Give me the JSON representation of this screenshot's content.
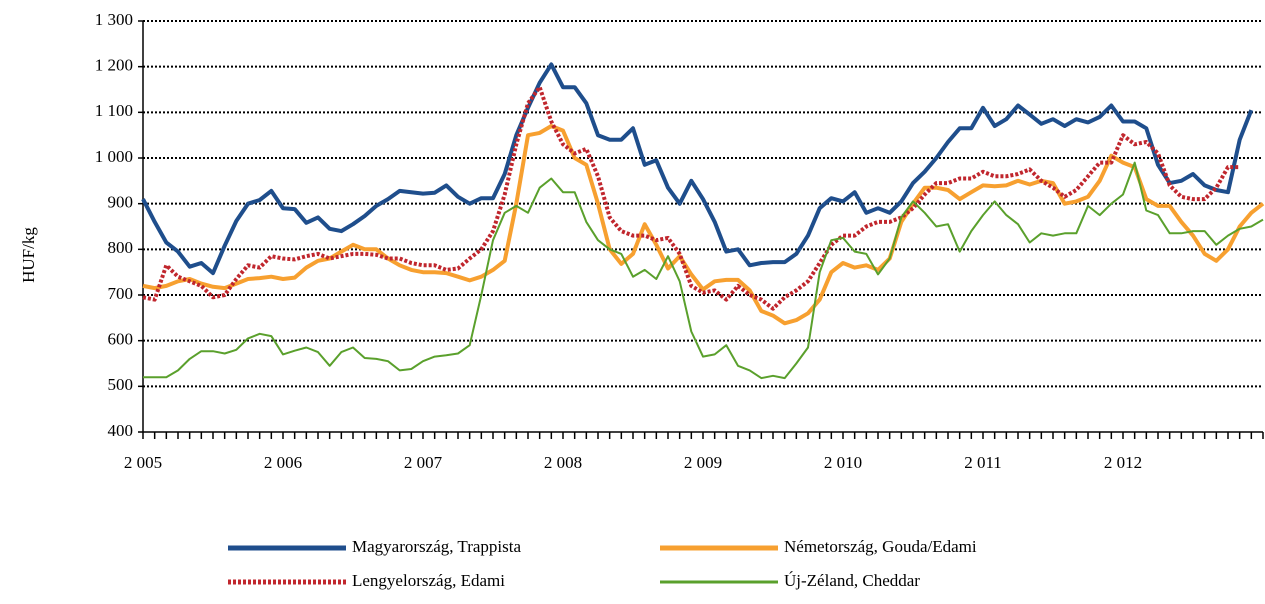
{
  "chart_data": {
    "type": "line",
    "y_label": "HUF/kg",
    "categories": [
      "2 005",
      null,
      null,
      null,
      null,
      null,
      null,
      null,
      null,
      null,
      null,
      null,
      "2 006",
      null,
      null,
      null,
      null,
      null,
      null,
      null,
      null,
      null,
      null,
      null,
      "2 007",
      null,
      null,
      null,
      null,
      null,
      null,
      null,
      null,
      null,
      null,
      null,
      "2 008",
      null,
      null,
      null,
      null,
      null,
      null,
      null,
      null,
      null,
      null,
      null,
      "2 009",
      null,
      null,
      null,
      null,
      null,
      null,
      null,
      null,
      null,
      null,
      null,
      "2 010",
      null,
      null,
      null,
      null,
      null,
      null,
      null,
      null,
      null,
      null,
      null,
      "2 011",
      null,
      null,
      null,
      null,
      null,
      null,
      null,
      null,
      null,
      null,
      null,
      "2 012",
      null,
      null,
      null,
      null,
      null,
      null,
      null,
      null,
      null,
      null,
      null,
      null
    ],
    "series": [
      {
        "name": "Magyarország, Trappista",
        "color": "#1f4e8c",
        "style": "solid",
        "width": 4,
        "values": [
          910,
          860,
          815,
          795,
          762,
          770,
          748,
          808,
          862,
          900,
          908,
          928,
          890,
          888,
          858,
          870,
          845,
          840,
          855,
          873,
          895,
          910,
          928,
          925,
          922,
          924,
          940,
          915,
          900,
          912,
          912,
          965,
          1050,
          1110,
          1165,
          1205,
          1155,
          1155,
          1120,
          1050,
          1040,
          1040,
          1065,
          985,
          995,
          935,
          900,
          950,
          910,
          860,
          795,
          800,
          765,
          770,
          772,
          772,
          790,
          830,
          890,
          912,
          905,
          925,
          880,
          890,
          880,
          905,
          945,
          970,
          1000,
          1035,
          1065,
          1065,
          1110,
          1070,
          1085,
          1115,
          1095,
          1075,
          1085,
          1070,
          1085,
          1078,
          1090,
          1115,
          1080,
          1080,
          1065,
          985,
          945,
          950,
          965,
          940,
          930,
          925,
          1040,
          1105,
          null
        ]
      },
      {
        "name": "Németország, Gouda/Edami",
        "color": "#f7a030",
        "style": "solid",
        "width": 4,
        "values": [
          720,
          715,
          720,
          730,
          735,
          725,
          718,
          715,
          725,
          735,
          737,
          740,
          735,
          738,
          760,
          775,
          780,
          795,
          810,
          800,
          800,
          780,
          765,
          755,
          750,
          750,
          748,
          740,
          732,
          740,
          755,
          775,
          900,
          1050,
          1055,
          1070,
          1060,
          1000,
          985,
          900,
          800,
          768,
          790,
          855,
          810,
          758,
          785,
          745,
          712,
          730,
          733,
          733,
          710,
          665,
          655,
          638,
          645,
          660,
          690,
          750,
          770,
          760,
          765,
          755,
          780,
          860,
          900,
          935,
          935,
          930,
          910,
          925,
          940,
          938,
          940,
          950,
          942,
          950,
          945,
          900,
          905,
          915,
          950,
          1005,
          990,
          980,
          910,
          895,
          895,
          860,
          830,
          790,
          775,
          800,
          850,
          880,
          900
        ]
      },
      {
        "name": "Lengyelország, Edami",
        "color": "#c0262d",
        "style": "dotted",
        "width": 4,
        "values": [
          695,
          690,
          765,
          740,
          730,
          720,
          695,
          700,
          735,
          765,
          760,
          785,
          780,
          778,
          785,
          790,
          780,
          785,
          790,
          790,
          788,
          780,
          780,
          770,
          765,
          765,
          755,
          758,
          780,
          800,
          840,
          920,
          1030,
          1120,
          1155,
          1080,
          1030,
          1010,
          1020,
          960,
          870,
          840,
          830,
          830,
          820,
          825,
          790,
          720,
          705,
          710,
          690,
          720,
          700,
          690,
          670,
          695,
          710,
          730,
          770,
          810,
          830,
          830,
          850,
          860,
          860,
          870,
          890,
          920,
          945,
          945,
          955,
          955,
          970,
          960,
          960,
          965,
          975,
          950,
          935,
          915,
          930,
          960,
          990,
          990,
          1050,
          1030,
          1035,
          1010,
          940,
          915,
          910,
          910,
          935,
          980,
          980,
          null,
          null
        ]
      },
      {
        "name": "Új-Zéland, Cheddar",
        "color": "#5aa02c",
        "style": "solid",
        "width": 2,
        "values": [
          520,
          520,
          520,
          535,
          560,
          577,
          577,
          572,
          580,
          605,
          615,
          610,
          570,
          578,
          585,
          575,
          545,
          575,
          585,
          562,
          560,
          555,
          535,
          538,
          555,
          565,
          568,
          572,
          590,
          700,
          820,
          880,
          895,
          880,
          935,
          955,
          925,
          925,
          860,
          820,
          800,
          790,
          740,
          755,
          735,
          785,
          730,
          620,
          565,
          570,
          590,
          545,
          535,
          518,
          523,
          518,
          550,
          585,
          750,
          820,
          825,
          795,
          790,
          745,
          780,
          870,
          905,
          880,
          850,
          855,
          795,
          840,
          875,
          905,
          875,
          855,
          815,
          835,
          830,
          835,
          835,
          895,
          875,
          900,
          920,
          990,
          885,
          875,
          835,
          835,
          840,
          840,
          810,
          830,
          845,
          850,
          865
        ]
      }
    ],
    "ylim": [
      400,
      1300
    ],
    "yticks": [
      400,
      500,
      600,
      700,
      800,
      900,
      {
        "value": 1000,
        "label": "1 000"
      },
      {
        "value": 1100,
        "label": "1 100"
      },
      {
        "value": 1200,
        "label": "1 200"
      },
      {
        "value": 1300,
        "label": "1 300"
      }
    ],
    "grid": true
  }
}
